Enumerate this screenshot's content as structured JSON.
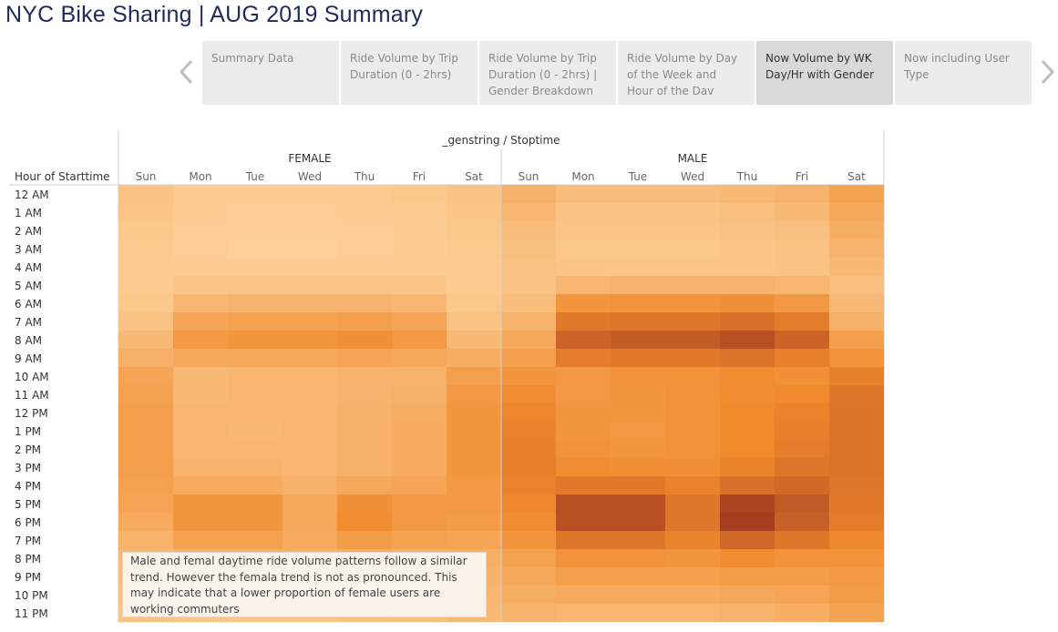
{
  "page": {
    "title": "NYC Bike Sharing | AUG 2019 Summary"
  },
  "nav": {
    "prev_icon": "chevron-left-icon",
    "next_icon": "chevron-right-icon"
  },
  "tabs": [
    {
      "label": "Summary Data",
      "active": false
    },
    {
      "label": "Ride Volume by Trip Duration (0 - 2hrs)",
      "active": false
    },
    {
      "label": "Ride Volume by Trip Duration (0 - 2hrs) | Gender Breakdown",
      "active": false
    },
    {
      "label": "Ride Volume by Day of the Week and Hour of the Dav",
      "active": false
    },
    {
      "label": "Now Volume by WK Day/Hr with Gender",
      "active": true
    },
    {
      "label": "Now including User Type",
      "active": false
    }
  ],
  "annotation": {
    "text": "Male and femal daytime ride volume patterns follow a similar trend.  However the femala trend is not as pronounced.  This may indicate that a lower proportion of female users are working commuters"
  },
  "chart_data": {
    "type": "heatmap",
    "title": "_genstring / Stoptime",
    "row_header": "Hour of Starttime",
    "groups": [
      "FEMALE",
      "MALE"
    ],
    "days": [
      "Sun",
      "Mon",
      "Tue",
      "Wed",
      "Thu",
      "Fri",
      "Sat"
    ],
    "hours": [
      "12 AM",
      "1 AM",
      "2 AM",
      "3 AM",
      "4 AM",
      "5 AM",
      "6 AM",
      "7 AM",
      "8 AM",
      "9 AM",
      "10 AM",
      "11 AM",
      "12 PM",
      "1 PM",
      "2 PM",
      "3 PM",
      "4 PM",
      "5 PM",
      "6 PM",
      "7 PM",
      "8 PM",
      "9 PM",
      "10 PM",
      "11 PM"
    ],
    "color_low": "#fdd49e",
    "color_mid": "#f08a2c",
    "color_high": "#a23a20",
    "values": {
      "FEMALE": [
        [
          0.12,
          0.06,
          0.06,
          0.06,
          0.07,
          0.08,
          0.11
        ],
        [
          0.1,
          0.05,
          0.04,
          0.04,
          0.05,
          0.06,
          0.09
        ],
        [
          0.08,
          0.04,
          0.04,
          0.04,
          0.04,
          0.05,
          0.08
        ],
        [
          0.07,
          0.04,
          0.03,
          0.03,
          0.04,
          0.05,
          0.07
        ],
        [
          0.06,
          0.05,
          0.05,
          0.05,
          0.05,
          0.05,
          0.06
        ],
        [
          0.06,
          0.09,
          0.1,
          0.1,
          0.1,
          0.09,
          0.06
        ],
        [
          0.08,
          0.2,
          0.22,
          0.22,
          0.22,
          0.2,
          0.08
        ],
        [
          0.12,
          0.32,
          0.34,
          0.34,
          0.36,
          0.32,
          0.12
        ],
        [
          0.18,
          0.4,
          0.42,
          0.42,
          0.45,
          0.4,
          0.18
        ],
        [
          0.24,
          0.3,
          0.3,
          0.3,
          0.32,
          0.3,
          0.26
        ],
        [
          0.32,
          0.18,
          0.2,
          0.2,
          0.22,
          0.22,
          0.36
        ],
        [
          0.34,
          0.18,
          0.2,
          0.2,
          0.22,
          0.24,
          0.4
        ],
        [
          0.36,
          0.2,
          0.2,
          0.2,
          0.24,
          0.26,
          0.42
        ],
        [
          0.36,
          0.2,
          0.18,
          0.2,
          0.24,
          0.28,
          0.42
        ],
        [
          0.36,
          0.2,
          0.2,
          0.2,
          0.24,
          0.28,
          0.42
        ],
        [
          0.36,
          0.22,
          0.22,
          0.2,
          0.24,
          0.28,
          0.42
        ],
        [
          0.34,
          0.28,
          0.28,
          0.24,
          0.3,
          0.32,
          0.4
        ],
        [
          0.32,
          0.42,
          0.42,
          0.3,
          0.46,
          0.4,
          0.4
        ],
        [
          0.28,
          0.42,
          0.42,
          0.3,
          0.48,
          0.4,
          0.38
        ],
        [
          0.22,
          0.34,
          0.34,
          0.28,
          0.38,
          0.34,
          0.32
        ],
        [
          0.18,
          0.22,
          0.24,
          0.22,
          0.26,
          0.24,
          0.26
        ],
        [
          0.16,
          0.18,
          0.18,
          0.18,
          0.2,
          0.2,
          0.22
        ],
        [
          0.14,
          0.14,
          0.14,
          0.14,
          0.16,
          0.16,
          0.2
        ],
        [
          0.12,
          0.1,
          0.1,
          0.1,
          0.12,
          0.14,
          0.18
        ]
      ],
      "MALE": [
        [
          0.24,
          0.16,
          0.16,
          0.16,
          0.18,
          0.22,
          0.34
        ],
        [
          0.2,
          0.12,
          0.12,
          0.12,
          0.14,
          0.18,
          0.3
        ],
        [
          0.16,
          0.1,
          0.1,
          0.1,
          0.12,
          0.14,
          0.26
        ],
        [
          0.14,
          0.08,
          0.08,
          0.08,
          0.1,
          0.12,
          0.22
        ],
        [
          0.12,
          0.1,
          0.1,
          0.1,
          0.1,
          0.12,
          0.18
        ],
        [
          0.12,
          0.2,
          0.22,
          0.22,
          0.22,
          0.2,
          0.14
        ],
        [
          0.16,
          0.42,
          0.44,
          0.44,
          0.45,
          0.4,
          0.18
        ],
        [
          0.22,
          0.6,
          0.62,
          0.62,
          0.66,
          0.58,
          0.24
        ],
        [
          0.3,
          0.74,
          0.78,
          0.78,
          0.86,
          0.74,
          0.36
        ],
        [
          0.36,
          0.58,
          0.6,
          0.6,
          0.64,
          0.56,
          0.44
        ],
        [
          0.42,
          0.4,
          0.44,
          0.44,
          0.48,
          0.46,
          0.56
        ],
        [
          0.48,
          0.4,
          0.42,
          0.44,
          0.48,
          0.5,
          0.62
        ],
        [
          0.52,
          0.42,
          0.42,
          0.44,
          0.5,
          0.54,
          0.64
        ],
        [
          0.54,
          0.42,
          0.4,
          0.44,
          0.5,
          0.56,
          0.64
        ],
        [
          0.56,
          0.44,
          0.42,
          0.44,
          0.5,
          0.58,
          0.64
        ],
        [
          0.56,
          0.48,
          0.46,
          0.46,
          0.54,
          0.62,
          0.64
        ],
        [
          0.54,
          0.6,
          0.6,
          0.54,
          0.66,
          0.7,
          0.62
        ],
        [
          0.52,
          0.86,
          0.86,
          0.62,
          0.94,
          0.8,
          0.6
        ],
        [
          0.48,
          0.86,
          0.86,
          0.62,
          0.98,
          0.76,
          0.58
        ],
        [
          0.42,
          0.62,
          0.62,
          0.54,
          0.72,
          0.62,
          0.52
        ],
        [
          0.34,
          0.44,
          0.44,
          0.42,
          0.48,
          0.44,
          0.44
        ],
        [
          0.3,
          0.36,
          0.36,
          0.36,
          0.38,
          0.38,
          0.4
        ],
        [
          0.26,
          0.28,
          0.28,
          0.28,
          0.3,
          0.32,
          0.38
        ],
        [
          0.22,
          0.2,
          0.2,
          0.2,
          0.22,
          0.26,
          0.34
        ]
      ]
    }
  }
}
